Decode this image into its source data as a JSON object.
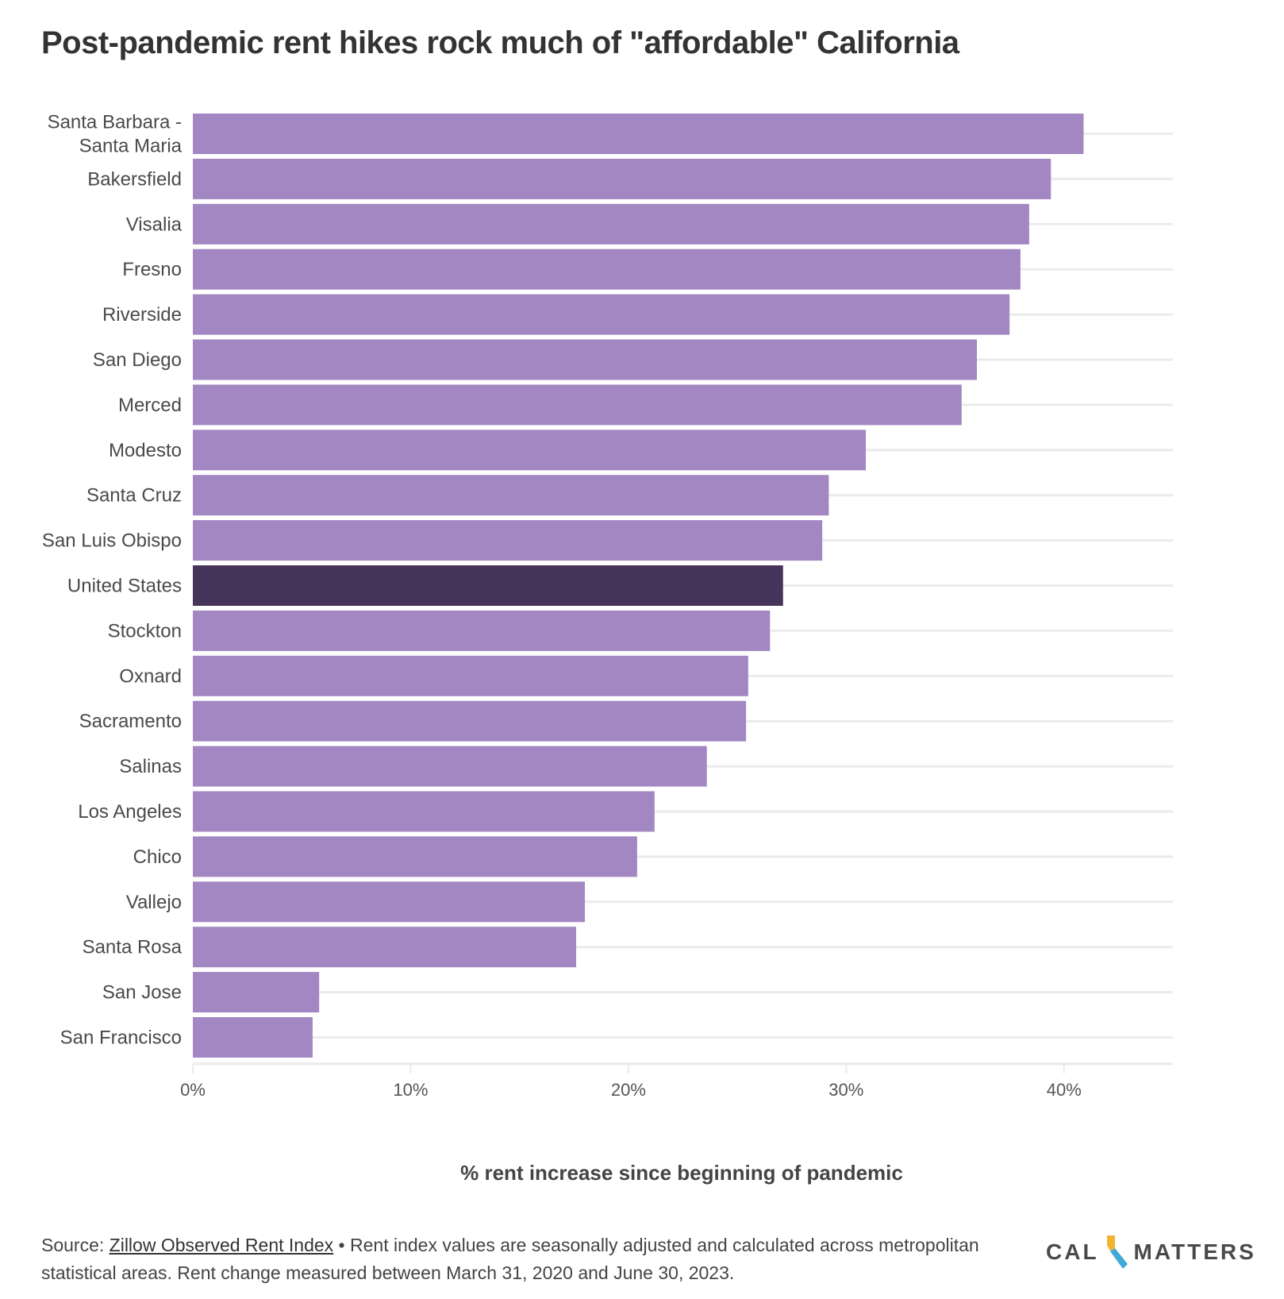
{
  "title": "Post-pandemic rent hikes rock much of \"affordable\" California",
  "footer": {
    "source_prefix": "Source: ",
    "source_link": "Zillow Observed Rent Index",
    "note": " • Rent index values are seasonally adjusted and calculated across metropolitan statistical areas. Rent change measured between March 31, 2020 and June 30, 2023."
  },
  "logo": {
    "left": "CAL",
    "right": "MATTERS"
  },
  "colors": {
    "bar": "#a287c2",
    "highlight": "#47345a",
    "grid": "#ebebeb",
    "text": "#333333"
  },
  "chart_data": {
    "type": "bar",
    "orientation": "horizontal",
    "title": "Post-pandemic rent hikes rock much of \"affordable\" California",
    "xlabel": "% rent increase since beginning of pandemic",
    "ylabel": "",
    "xlim": [
      0,
      45
    ],
    "xticks": [
      0,
      10,
      20,
      30,
      40
    ],
    "xtick_labels": [
      "0%",
      "10%",
      "20%",
      "30%",
      "40%"
    ],
    "grid": true,
    "highlight": "United States",
    "categories": [
      [
        "Santa Barbara -",
        "Santa Maria"
      ],
      [
        "Bakersfield"
      ],
      [
        "Visalia"
      ],
      [
        "Fresno"
      ],
      [
        "Riverside"
      ],
      [
        "San Diego"
      ],
      [
        "Merced"
      ],
      [
        "Modesto"
      ],
      [
        "Santa Cruz"
      ],
      [
        "San Luis Obispo"
      ],
      [
        "United States"
      ],
      [
        "Stockton"
      ],
      [
        "Oxnard"
      ],
      [
        "Sacramento"
      ],
      [
        "Salinas"
      ],
      [
        "Los Angeles"
      ],
      [
        "Chico"
      ],
      [
        "Vallejo"
      ],
      [
        "Santa Rosa"
      ],
      [
        "San Jose"
      ],
      [
        "San Francisco"
      ]
    ],
    "values": [
      40.9,
      39.4,
      38.4,
      38.0,
      37.5,
      36.0,
      35.3,
      30.9,
      29.2,
      28.9,
      27.1,
      26.5,
      25.5,
      25.4,
      23.6,
      21.2,
      20.4,
      18.0,
      17.6,
      5.8,
      5.5
    ]
  }
}
